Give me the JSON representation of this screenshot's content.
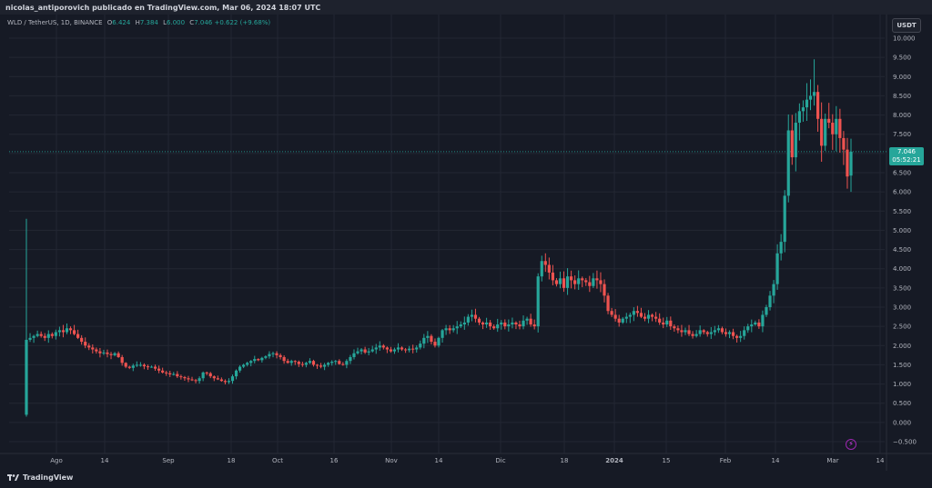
{
  "header": {
    "publisher_text": "nicolas_antiporovich publicado en TradingView.com, Mar 06, 2024 18:07 UTC"
  },
  "legend": {
    "symbol": "WLD / TetherUS, 1D, BINANCE",
    "open_label": "O",
    "open": "6.424",
    "high_label": "H",
    "high": "7.384",
    "low_label": "L",
    "low": "6.000",
    "close_label": "C",
    "close": "7.046",
    "change": "+0.622 (+9.68%)"
  },
  "currency_button": "USDT",
  "last_price": {
    "price": "7.046",
    "countdown": "05:52:21"
  },
  "logo_text": "TradingView",
  "colors": {
    "up": "#26a69a",
    "down": "#ef5350",
    "background": "#161a25",
    "grid": "#232733",
    "text": "#b2b5be"
  },
  "chart_data": {
    "type": "candlestick",
    "x_tick_labels": [
      "Ago",
      "14",
      "Sep",
      "18",
      "Oct",
      "16",
      "Nov",
      "14",
      "Dic",
      "18",
      "2024",
      "15",
      "Feb",
      "14",
      "Mar",
      "14"
    ],
    "y_tick_labels": [
      "10.000",
      "9.500",
      "9.000",
      "8.500",
      "8.000",
      "7.500",
      "7.000",
      "6.500",
      "6.000",
      "5.500",
      "5.000",
      "4.500",
      "4.000",
      "3.500",
      "3.000",
      "2.500",
      "2.000",
      "1.500",
      "1.000",
      "0.500",
      "0.000",
      "−0.500"
    ],
    "ylim": [
      -0.5,
      10.0
    ],
    "grid": true,
    "close_series": [
      2.15,
      2.2,
      2.25,
      2.3,
      2.25,
      2.2,
      2.3,
      2.25,
      2.35,
      2.4,
      2.35,
      2.45,
      2.4,
      2.3,
      2.2,
      2.1,
      2.0,
      1.95,
      1.9,
      1.85,
      1.8,
      1.82,
      1.78,
      1.75,
      1.8,
      1.7,
      1.55,
      1.45,
      1.42,
      1.48,
      1.5,
      1.5,
      1.46,
      1.44,
      1.45,
      1.4,
      1.35,
      1.3,
      1.28,
      1.25,
      1.26,
      1.2,
      1.18,
      1.15,
      1.12,
      1.1,
      1.08,
      1.15,
      1.3,
      1.28,
      1.2,
      1.15,
      1.12,
      1.08,
      1.05,
      1.08,
      1.2,
      1.35,
      1.45,
      1.5,
      1.55,
      1.6,
      1.65,
      1.62,
      1.68,
      1.72,
      1.78,
      1.8,
      1.75,
      1.7,
      1.6,
      1.55,
      1.6,
      1.58,
      1.52,
      1.5,
      1.55,
      1.6,
      1.5,
      1.48,
      1.45,
      1.5,
      1.55,
      1.58,
      1.6,
      1.52,
      1.5,
      1.6,
      1.7,
      1.8,
      1.85,
      1.9,
      1.82,
      1.85,
      1.9,
      1.95,
      2.0,
      1.95,
      1.9,
      1.85,
      1.9,
      1.95,
      1.9,
      1.88,
      1.92,
      1.9,
      1.95,
      2.05,
      2.2,
      2.25,
      2.1,
      2.0,
      2.2,
      2.4,
      2.45,
      2.4,
      2.45,
      2.5,
      2.55,
      2.6,
      2.75,
      2.8,
      2.7,
      2.6,
      2.55,
      2.6,
      2.5,
      2.45,
      2.55,
      2.6,
      2.5,
      2.55,
      2.6,
      2.55,
      2.5,
      2.65,
      2.7,
      2.55,
      2.5,
      3.8,
      4.2,
      4.1,
      3.9,
      3.7,
      3.6,
      3.75,
      3.5,
      3.8,
      3.7,
      3.6,
      3.75,
      3.7,
      3.65,
      3.55,
      3.75,
      3.7,
      3.6,
      3.3,
      2.9,
      2.8,
      2.7,
      2.6,
      2.7,
      2.75,
      2.8,
      2.9,
      2.85,
      2.75,
      2.7,
      2.8,
      2.75,
      2.7,
      2.6,
      2.55,
      2.65,
      2.5,
      2.45,
      2.4,
      2.35,
      2.4,
      2.3,
      2.25,
      2.3,
      2.4,
      2.35,
      2.3,
      2.35,
      2.4,
      2.45,
      2.35,
      2.3,
      2.35,
      2.25,
      2.2,
      2.25,
      2.4,
      2.5,
      2.55,
      2.6,
      2.5,
      2.8,
      3.0,
      3.3,
      3.6,
      4.4,
      4.7,
      5.9,
      7.6,
      6.9,
      7.8,
      8.1,
      8.2,
      8.4,
      8.5,
      8.6,
      7.9,
      7.2,
      7.9,
      7.8,
      7.5,
      7.9,
      7.4,
      7.1,
      6.4,
      7.046
    ],
    "wick_extremes": {
      "first_candle_high": 5.3,
      "first_candle_low": 0.15,
      "peak_high": 9.45,
      "last_open": 6.424,
      "last_high": 7.384,
      "last_low": 6.0,
      "last_close": 7.046
    }
  }
}
